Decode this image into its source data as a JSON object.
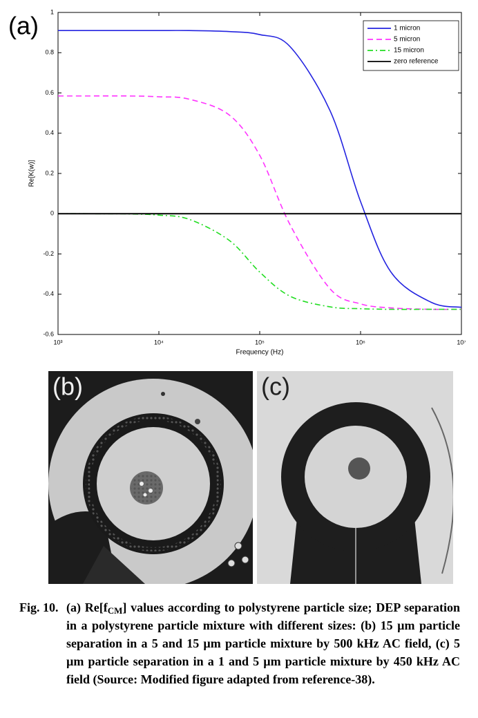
{
  "chart_data": {
    "type": "line",
    "panel_label": "(a)",
    "x_label": "Frequency (Hz)",
    "y_label": "Re[K(w)]",
    "log_x": true,
    "grid": false,
    "legend": "upper right",
    "x": [
      1000,
      2000,
      5000,
      10000,
      20000,
      50000,
      100000,
      200000,
      500000,
      1000000,
      2000000,
      5000000,
      10000000
    ],
    "xlim": [
      1000,
      10000000
    ],
    "xticks": [
      {
        "value": 1000,
        "label": "10³"
      },
      {
        "value": 10000,
        "label": "10⁴"
      },
      {
        "value": 100000,
        "label": "10⁵"
      },
      {
        "value": 1000000,
        "label": "10⁶"
      },
      {
        "value": 10000000,
        "label": "10⁷"
      }
    ],
    "ylim": [
      -0.6,
      1
    ],
    "yticks": [
      -0.6,
      -0.4,
      -0.2,
      0,
      0.2,
      0.4,
      0.6,
      0.8,
      1
    ],
    "series": [
      {
        "name": "1 micron",
        "color": "#2323e0",
        "style": "solid",
        "values": [
          0.91,
          0.91,
          0.91,
          0.91,
          0.91,
          0.905,
          0.89,
          0.83,
          0.51,
          0.06,
          -0.29,
          -0.44,
          -0.465
        ]
      },
      {
        "name": "5 micron",
        "color": "#ff33ff",
        "style": "dashed",
        "values": [
          0.585,
          0.585,
          0.585,
          0.581,
          0.569,
          0.49,
          0.29,
          -0.055,
          -0.374,
          -0.448,
          -0.468,
          -0.475,
          -0.475
        ]
      },
      {
        "name": "15 micron",
        "color": "#22dd22",
        "style": "dashdot",
        "values": [
          0,
          0,
          -0.001,
          -0.007,
          -0.028,
          -0.133,
          -0.29,
          -0.41,
          -0.463,
          -0.472,
          -0.475,
          -0.475,
          -0.475
        ]
      },
      {
        "name": "zero reference",
        "color": "#000000",
        "style": "solid",
        "values": [
          0,
          0,
          0,
          0,
          0,
          0,
          0,
          0,
          0,
          0,
          0,
          0,
          0
        ]
      }
    ]
  },
  "images": [
    {
      "label": "(b)"
    },
    {
      "label": "(c)"
    }
  ],
  "caption": {
    "label": "Fig. 10.",
    "parts": [
      "(a) Re[f",
      "CM",
      "] values according to polystyrene particle size; DEP separation in a polystyrene particle mixture with different sizes: (b) 15 µm particle separation in a 5 and 15 µm particle mixture by 500 kHz AC field, (c) 5 µm particle separation in a 1 and 5 µm particle mixture by 450 kHz AC field (Source: Modified figure adapted from reference-38)."
    ]
  }
}
